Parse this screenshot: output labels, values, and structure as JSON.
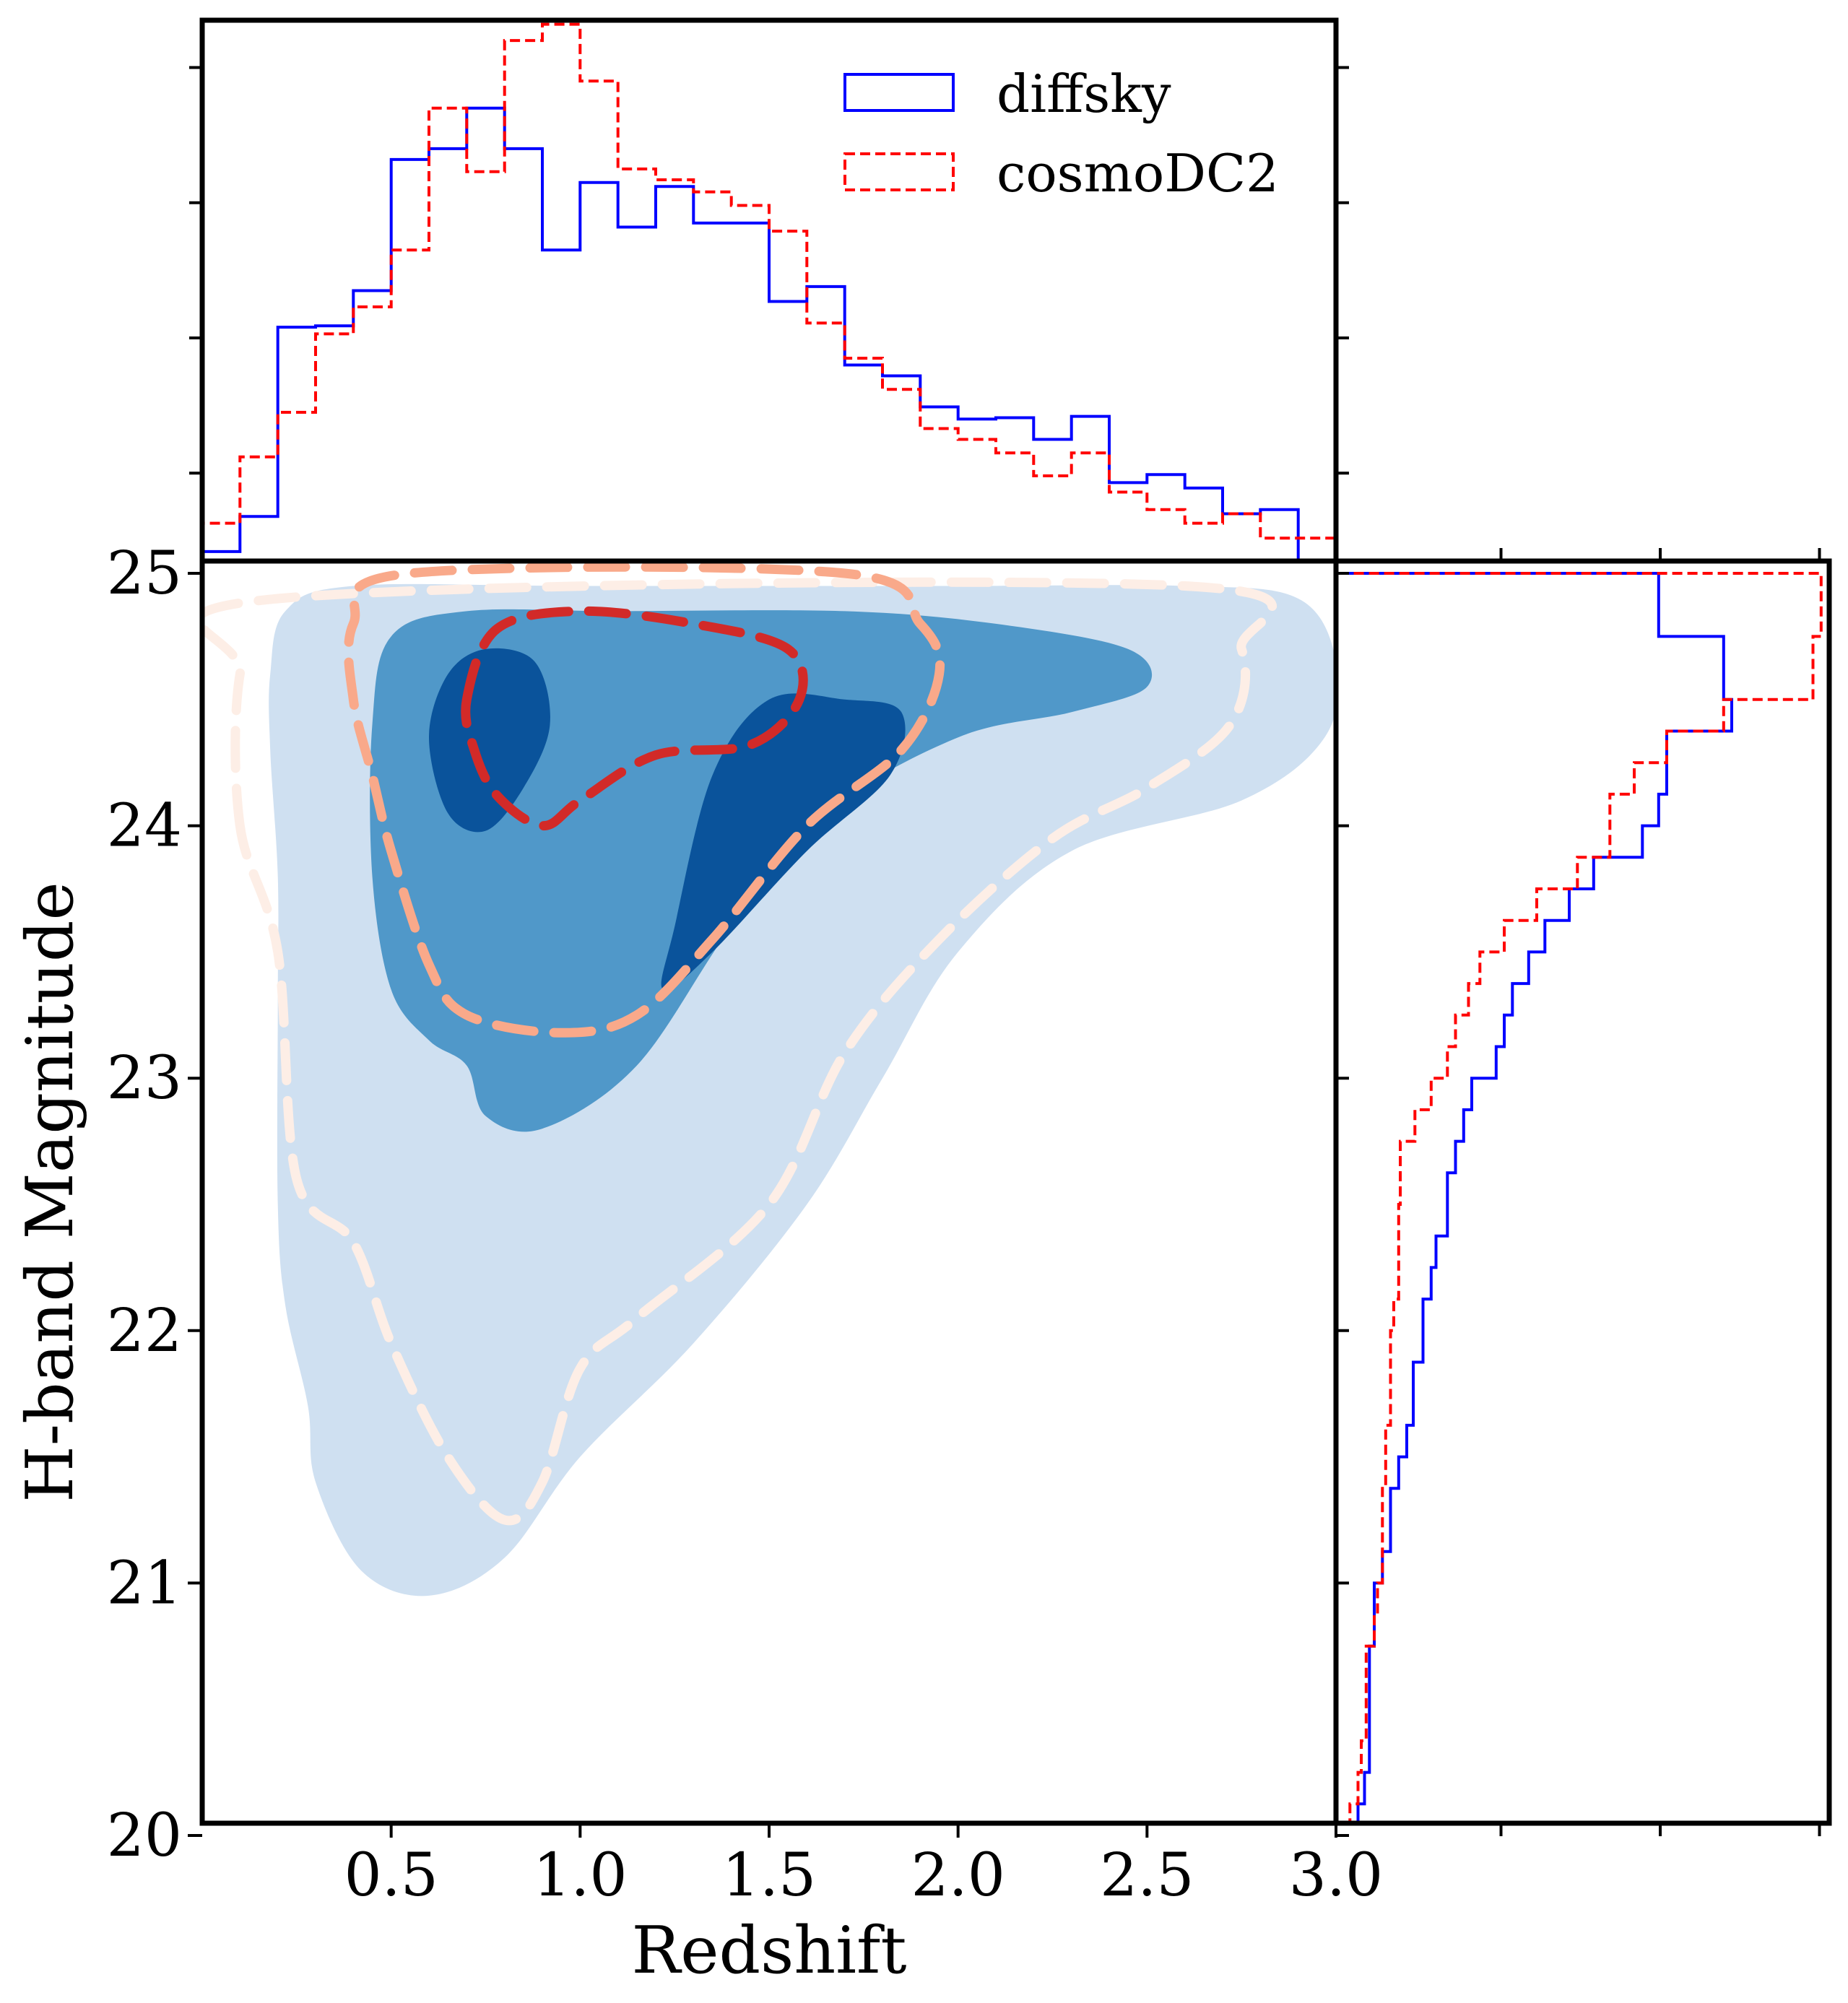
{
  "chart_data": [
    {
      "type": "contour",
      "panel": "joint",
      "xlabel": "Redshift",
      "ylabel": "H-band Magnitude",
      "xlim": [
        0.0,
        3.0
      ],
      "ylim": [
        20.0,
        25.0
      ],
      "xticks": [
        "0.5",
        "1.0",
        "1.5",
        "2.0",
        "2.5",
        "3.0"
      ],
      "yticks": [
        "20",
        "21",
        "22",
        "23",
        "24",
        "25"
      ],
      "series": [
        {
          "colors": [
            "#cfe0f1",
            "#5098c9",
            "#0a539b"
          ],
          "style": "filled",
          "levels": [
            [
              [
                [
                  0.18,
                  24.6
                ],
                [
                  0.22,
                  24.85
                ],
                [
                  0.4,
                  24.95
                ],
                [
                  1.0,
                  24.95
                ],
                [
                  2.0,
                  24.95
                ],
                [
                  2.6,
                  24.95
                ],
                [
                  2.9,
                  24.9
                ],
                [
                  3.0,
                  24.65
                ],
                [
                  2.97,
                  24.35
                ],
                [
                  2.75,
                  24.1
                ],
                [
                  2.3,
                  23.9
                ],
                [
                  2.0,
                  23.5
                ],
                [
                  1.8,
                  23.0
                ],
                [
                  1.6,
                  22.5
                ],
                [
                  1.3,
                  21.95
                ],
                [
                  1.0,
                  21.5
                ],
                [
                  0.8,
                  21.1
                ],
                [
                  0.6,
                  20.95
                ],
                [
                  0.42,
                  21.05
                ],
                [
                  0.3,
                  21.4
                ],
                [
                  0.28,
                  21.7
                ],
                [
                  0.22,
                  22.1
                ],
                [
                  0.2,
                  22.5
                ],
                [
                  0.2,
                  23.3
                ],
                [
                  0.2,
                  23.8
                ],
                [
                  0.18,
                  24.3
                ]
              ]
            ],
            [
              [
                [
                  0.45,
                  24.4
                ],
                [
                  0.5,
                  24.75
                ],
                [
                  0.7,
                  24.85
                ],
                [
                  1.1,
                  24.85
                ],
                [
                  1.7,
                  24.85
                ],
                [
                  2.1,
                  24.8
                ],
                [
                  2.45,
                  24.7
                ],
                [
                  2.5,
                  24.55
                ],
                [
                  2.3,
                  24.45
                ],
                [
                  2.0,
                  24.35
                ],
                [
                  1.65,
                  24.05
                ],
                [
                  1.4,
                  23.6
                ],
                [
                  1.15,
                  23.05
                ],
                [
                  0.9,
                  22.8
                ],
                [
                  0.75,
                  22.85
                ],
                [
                  0.7,
                  23.05
                ],
                [
                  0.6,
                  23.15
                ],
                [
                  0.5,
                  23.35
                ],
                [
                  0.45,
                  23.8
                ]
              ]
            ],
            [
              [
                [
                  0.6,
                  24.35
                ],
                [
                  0.65,
                  24.6
                ],
                [
                  0.75,
                  24.7
                ],
                [
                  0.88,
                  24.65
                ],
                [
                  0.92,
                  24.4
                ],
                [
                  0.85,
                  24.15
                ],
                [
                  0.75,
                  23.98
                ],
                [
                  0.65,
                  24.05
                ]
              ],
              [
                [
                  1.25,
                  23.6
                ],
                [
                  1.35,
                  24.2
                ],
                [
                  1.5,
                  24.5
                ],
                [
                  1.7,
                  24.5
                ],
                [
                  1.85,
                  24.45
                ],
                [
                  1.82,
                  24.2
                ],
                [
                  1.6,
                  23.9
                ],
                [
                  1.35,
                  23.5
                ],
                [
                  1.22,
                  23.35
                ]
              ]
            ]
          ]
        },
        {
          "colors": [
            "#fdeee6",
            "#f9a98a",
            "#d22a28"
          ],
          "style": "dashed",
          "levels": [
            [
              [
                [
                  0.1,
                  24.0
                ],
                [
                  0.1,
                  24.6
                ],
                [
                  0.2,
                  24.9
                ],
                [
                  2.6,
                  24.95
                ],
                [
                  2.75,
                  24.7
                ],
                [
                  2.72,
                  24.4
                ],
                [
                  2.5,
                  24.15
                ],
                [
                  2.25,
                  23.95
                ],
                [
                  1.95,
                  23.55
                ],
                [
                  1.7,
                  23.1
                ],
                [
                  1.5,
                  22.5
                ],
                [
                  1.15,
                  22.05
                ],
                [
                  1.0,
                  21.85
                ],
                [
                  0.9,
                  21.4
                ],
                [
                  0.8,
                  21.25
                ],
                [
                  0.65,
                  21.5
                ],
                [
                  0.5,
                  21.95
                ],
                [
                  0.4,
                  22.35
                ],
                [
                  0.25,
                  22.6
                ],
                [
                  0.2,
                  23.5
                ]
              ]
            ],
            [
              [
                [
                  0.4,
                  24.5
                ],
                [
                  0.4,
                  24.8
                ],
                [
                  0.55,
                  25.0
                ],
                [
                  1.7,
                  25.0
                ],
                [
                  1.9,
                  24.8
                ],
                [
                  1.95,
                  24.6
                ],
                [
                  1.85,
                  24.3
                ],
                [
                  1.6,
                  24.0
                ],
                [
                  1.35,
                  23.55
                ],
                [
                  1.15,
                  23.25
                ],
                [
                  0.95,
                  23.18
                ],
                [
                  0.7,
                  23.25
                ],
                [
                  0.6,
                  23.45
                ],
                [
                  0.5,
                  23.9
                ],
                [
                  0.45,
                  24.2
                ]
              ]
            ],
            [
              [
                [
                  0.7,
                  24.5
                ],
                [
                  0.78,
                  24.78
                ],
                [
                  1.0,
                  24.85
                ],
                [
                  1.3,
                  24.8
                ],
                [
                  1.55,
                  24.7
                ],
                [
                  1.58,
                  24.5
                ],
                [
                  1.45,
                  24.32
                ],
                [
                  1.2,
                  24.28
                ],
                [
                  1.0,
                  24.1
                ],
                [
                  0.9,
                  24.0
                ],
                [
                  0.78,
                  24.12
                ],
                [
                  0.72,
                  24.3
                ]
              ]
            ]
          ]
        }
      ]
    },
    {
      "type": "step-histogram",
      "panel": "top-marginal",
      "xlim": [
        0.0,
        3.0
      ],
      "x_edges": [
        0.0,
        0.1,
        0.2,
        0.3,
        0.4,
        0.5,
        0.6,
        0.7,
        0.8,
        0.9,
        1.0,
        1.1,
        1.2,
        1.3,
        1.4,
        1.5,
        1.6,
        1.7,
        1.8,
        1.9,
        2.0,
        2.1,
        2.2,
        2.3,
        2.4,
        2.5,
        2.6,
        2.7,
        2.8,
        2.9,
        3.0
      ],
      "ylim": [
        0.0,
        4.0
      ],
      "series": [
        {
          "name": "diffsky",
          "color": "#0000ff",
          "style": "solid",
          "values": [
            0.07,
            0.33,
            1.73,
            1.74,
            2.0,
            2.97,
            3.05,
            3.35,
            3.05,
            2.3,
            2.8,
            2.47,
            2.77,
            2.5,
            2.5,
            1.92,
            2.03,
            1.45,
            1.37,
            1.14,
            1.05,
            1.06,
            0.9,
            1.07,
            0.58,
            0.64,
            0.54,
            0.35,
            0.38,
            0.0
          ]
        },
        {
          "name": "cosmoDC2",
          "color": "#ff0000",
          "style": "dashed",
          "values": [
            0.28,
            0.77,
            1.1,
            1.68,
            1.88,
            2.3,
            3.35,
            2.88,
            3.85,
            3.97,
            3.55,
            2.9,
            2.82,
            2.73,
            2.63,
            2.44,
            1.76,
            1.5,
            1.27,
            0.98,
            0.9,
            0.8,
            0.63,
            0.8,
            0.51,
            0.38,
            0.28,
            0.35,
            0.17,
            0.17
          ]
        }
      ],
      "legend": {
        "position": "upper-right",
        "entries": [
          "diffsky",
          "cosmoDC2"
        ]
      }
    },
    {
      "type": "step-histogram",
      "panel": "right-marginal",
      "orientation": "horizontal",
      "ylim": [
        20.0,
        25.0
      ],
      "y_edges": [
        20.0,
        20.125,
        20.25,
        20.375,
        20.5,
        20.625,
        20.75,
        20.875,
        21.0,
        21.125,
        21.25,
        21.375,
        21.5,
        21.625,
        21.75,
        21.875,
        22.0,
        22.125,
        22.25,
        22.375,
        22.5,
        22.625,
        22.75,
        22.875,
        23.0,
        23.125,
        23.25,
        23.375,
        23.5,
        23.625,
        23.75,
        23.875,
        24.0,
        24.125,
        24.25,
        24.375,
        24.5,
        24.625,
        24.75,
        24.875,
        25.0
      ],
      "xlim": [
        0.0,
        3.0
      ],
      "series": [
        {
          "name": "diffsky",
          "color": "#0000ff",
          "style": "solid",
          "values": [
            0.1,
            0.14,
            0.17,
            0.17,
            0.17,
            0.17,
            0.2,
            0.2,
            0.25,
            0.3,
            0.3,
            0.35,
            0.4,
            0.44,
            0.44,
            0.5,
            0.5,
            0.55,
            0.58,
            0.65,
            0.65,
            0.7,
            0.75,
            0.8,
            0.95,
            1.0,
            1.05,
            1.15,
            1.25,
            1.4,
            1.55,
            1.85,
            1.95,
            2.0,
            2.0,
            2.4,
            2.35,
            2.35,
            1.95,
            1.95
          ]
        },
        {
          "name": "cosmoDC2",
          "color": "#ff0000",
          "style": "dashed",
          "values": [
            0.05,
            0.1,
            0.12,
            0.15,
            0.15,
            0.15,
            0.2,
            0.22,
            0.25,
            0.25,
            0.25,
            0.27,
            0.27,
            0.3,
            0.3,
            0.3,
            0.32,
            0.35,
            0.35,
            0.35,
            0.36,
            0.36,
            0.45,
            0.55,
            0.65,
            0.7,
            0.78,
            0.85,
            1.0,
            1.2,
            1.45,
            1.65,
            1.65,
            1.8,
            2.0,
            2.35,
            2.9,
            2.9,
            2.95,
            2.95
          ]
        }
      ]
    }
  ]
}
